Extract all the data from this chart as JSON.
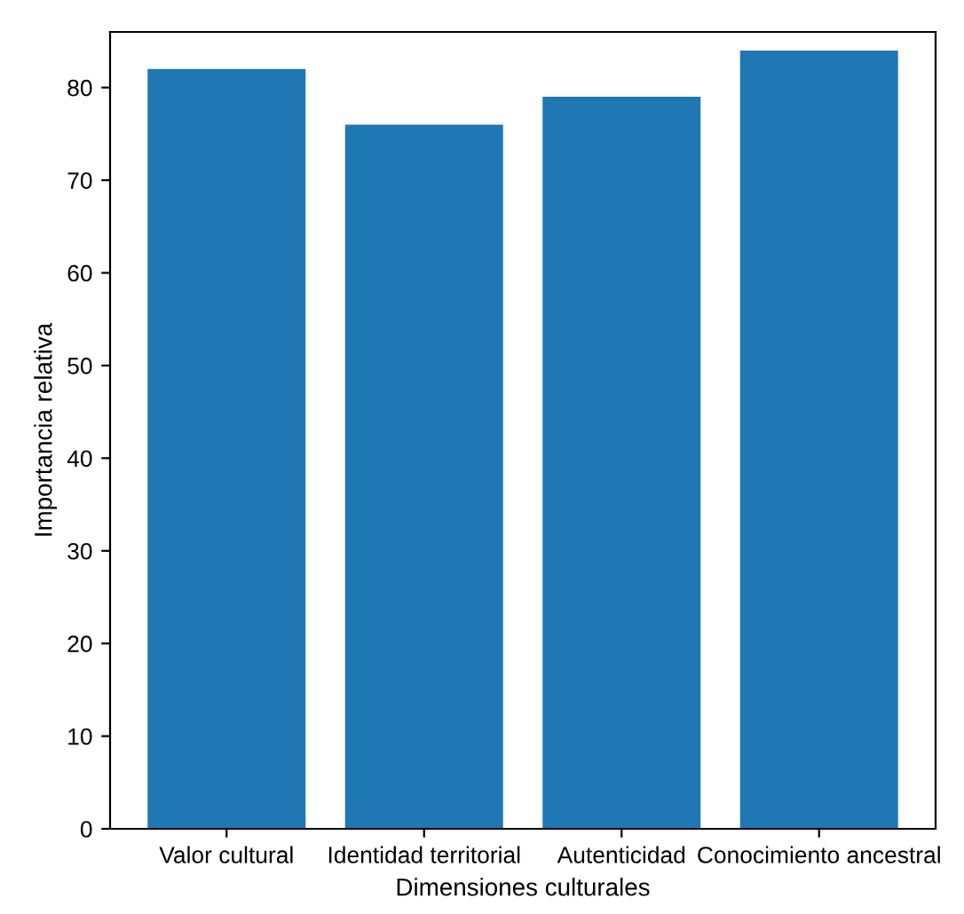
{
  "chart_data": {
    "type": "bar",
    "categories": [
      "Valor cultural",
      "Identidad territorial",
      "Autenticidad",
      "Conocimiento ancestral"
    ],
    "values": [
      82,
      76,
      79,
      84
    ],
    "color": "#1f77b4",
    "xlabel": "Dimensiones culturales",
    "ylabel": "Importancia relativa",
    "ylim": [
      0,
      86
    ],
    "yticks": [
      0,
      10,
      20,
      30,
      40,
      50,
      60,
      70,
      80
    ],
    "grid": false,
    "legend": false
  }
}
